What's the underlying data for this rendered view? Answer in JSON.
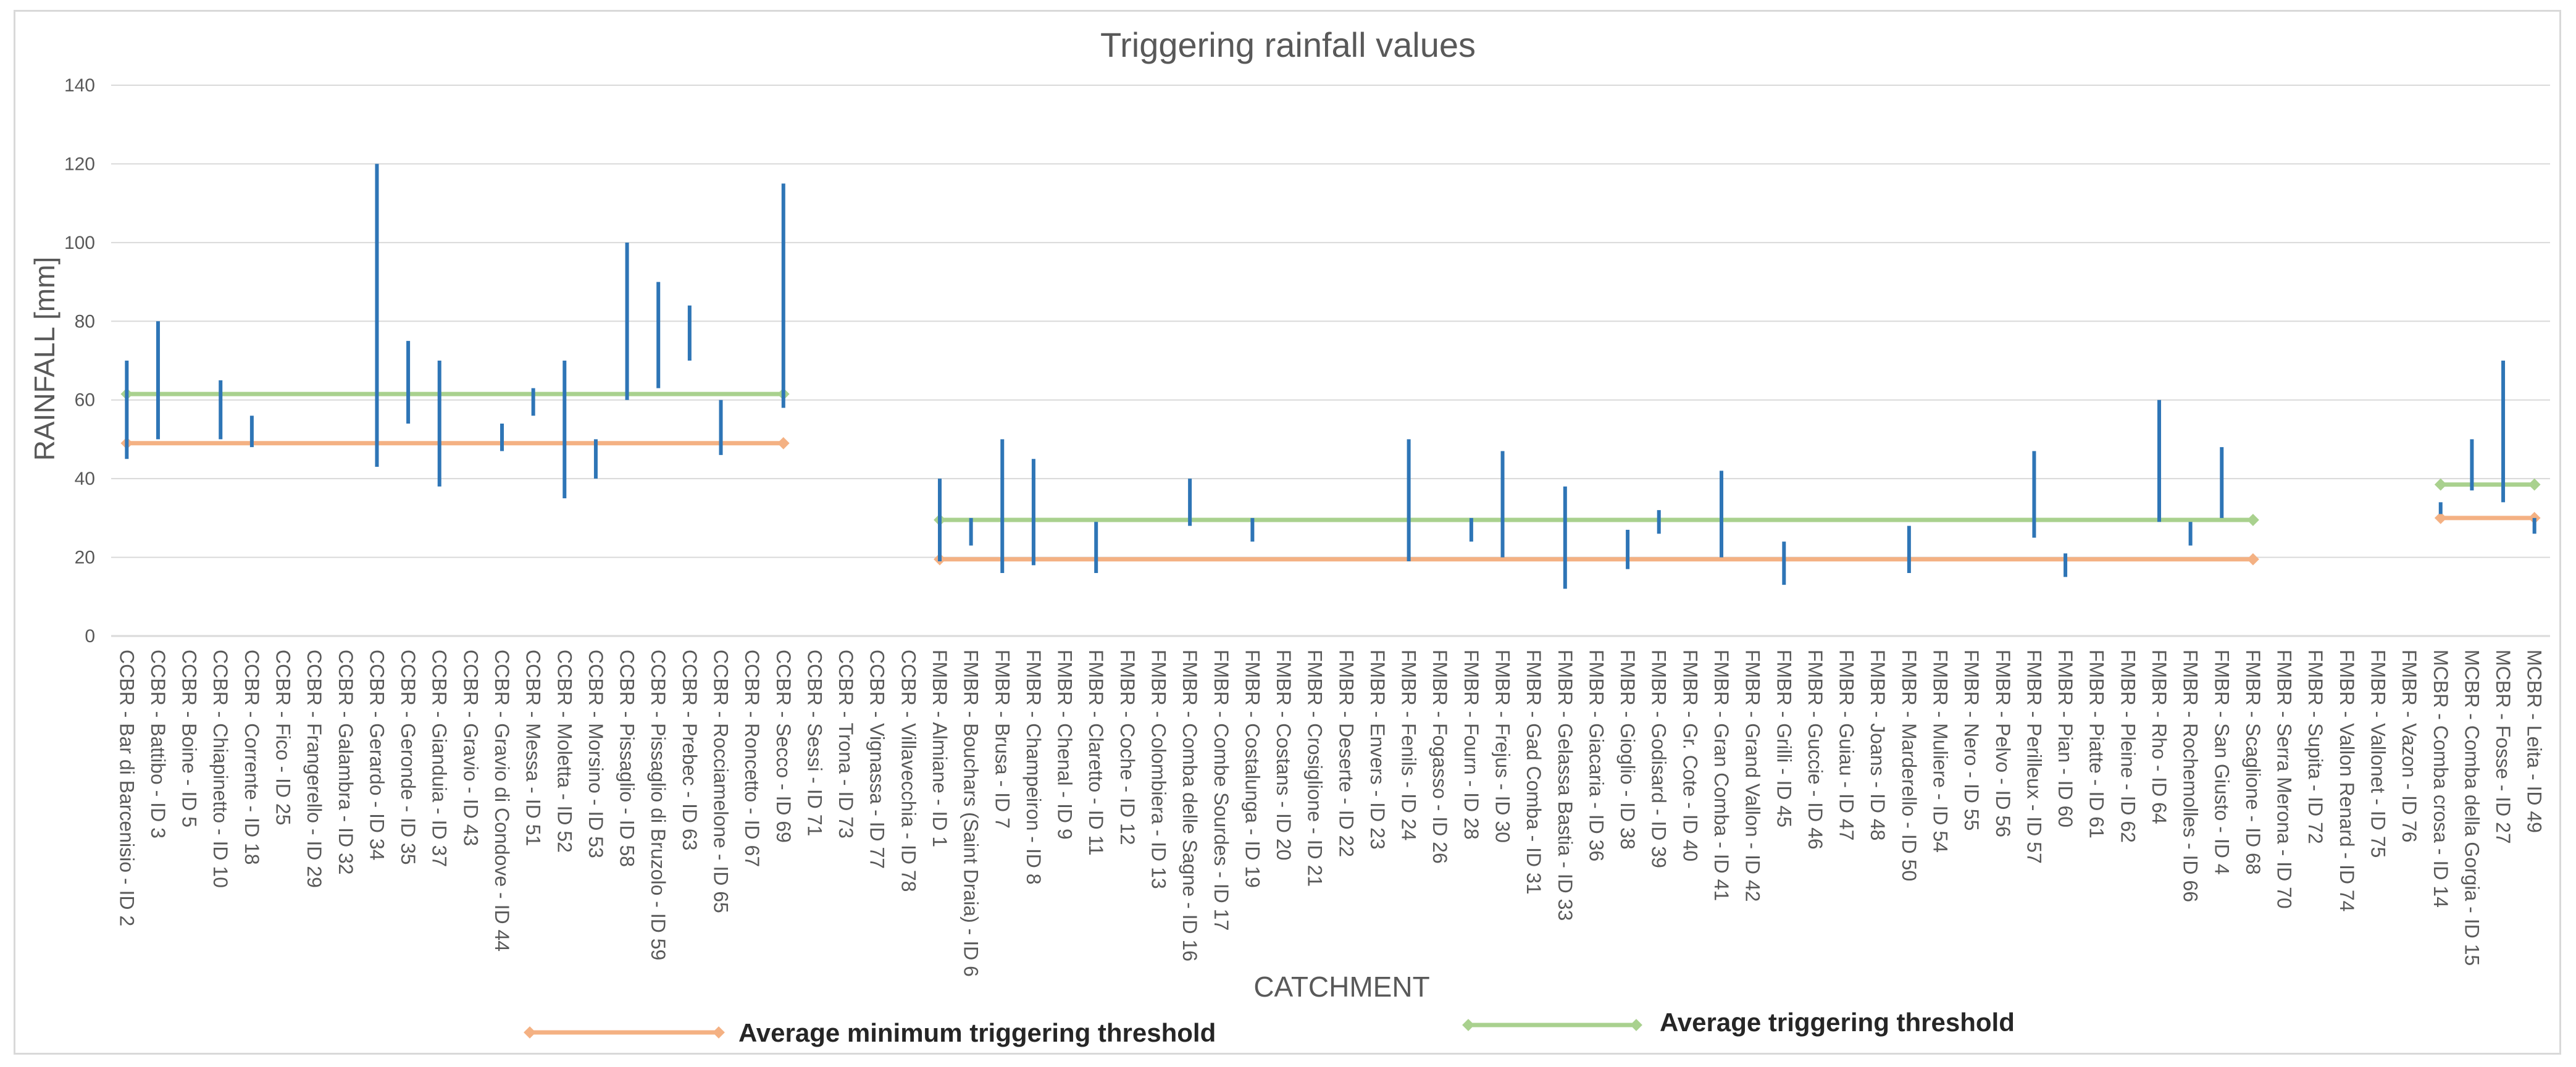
{
  "chart_data": {
    "type": "range-bar",
    "title": "Triggering rainfall values",
    "xlabel": "CATCHMENT",
    "ylabel": "RAINFALL [mm]",
    "ylim": [
      0,
      140
    ],
    "yticks": [
      0,
      20,
      40,
      60,
      80,
      100,
      120,
      140
    ],
    "grid": true,
    "colors": {
      "range": "#2e75b6",
      "min_threshold": "#f4b183",
      "avg_threshold": "#a9d18e",
      "grid": "#d9d9d9",
      "text": "#595959"
    },
    "categories": [
      "CCBR - Bar di Barcenisio - ID 2",
      "CCBR - Battibo - ID 3",
      "CCBR - Boine - ID 5",
      "CCBR - Chiapinetto - ID 10",
      "CCBR - Corrente - ID 18",
      "CCBR - Fico - ID 25",
      "CCBR - Frangerello - ID 29",
      "CCBR - Galambra - ID 32",
      "CCBR - Gerardo - ID 34",
      "CCBR - Geronde - ID 35",
      "CCBR - Gianduia - ID 37",
      "CCBR - Gravio - ID 43",
      "CCBR - Gravio di Condove - ID 44",
      "CCBR - Messa - ID 51",
      "CCBR - Moletta - ID 52",
      "CCBR - Morsino - ID 53",
      "CCBR - Pissaglio - ID 58",
      "CCBR - Pissaglio di Bruzolo - ID 59",
      "CCBR - Prebec - ID 63",
      "CCBR - Rocciamelone - ID 65",
      "CCBR - Roncetto - ID 67",
      "CCBR - Secco - ID 69",
      "CCBR - Sessi - ID 71",
      "CCBR - Trona - ID 73",
      "CCBR - Vignassa - ID 77",
      "CCBR - Villavecchia - ID 78",
      "FMBR - Almiane - ID 1",
      "FMBR - Bouchars (Saint Draia) - ID 6",
      "FMBR - Brusa - ID 7",
      "FMBR - Champeiron - ID 8",
      "FMBR - Chenal - ID 9",
      "FMBR - Claretto - ID 11",
      "FMBR - Coche - ID 12",
      "FMBR - Colombiera - ID 13",
      "FMBR - Comba delle Sagne - ID 16",
      "FMBR - Combe Sourdes - ID 17",
      "FMBR - Costalunga - ID 19",
      "FMBR - Costans - ID 20",
      "FMBR - Crosiglione - ID 21",
      "FMBR - Deserte - ID 22",
      "FMBR - Envers - ID 23",
      "FMBR - Fenils - ID 24",
      "FMBR - Fogasso - ID 26",
      "FMBR - Fourn - ID 28",
      "FMBR - Frejus - ID 30",
      "FMBR - Gad Comba - ID 31",
      "FMBR - Gelassa Bastia - ID 33",
      "FMBR - Giacaria - ID 36",
      "FMBR - Gioglio - ID 38",
      "FMBR - Godisard - ID 39",
      "FMBR - Gr. Cote - ID 40",
      "FMBR - Gran Comba - ID 41",
      "FMBR - Grand Vallon - ID 42",
      "FMBR - Grilli - ID 45",
      "FMBR - Guccie - ID 46",
      "FMBR - Guiau - ID 47",
      "FMBR - Joans - ID 48",
      "FMBR - Marderello - ID 50",
      "FMBR - Muliere - ID 54",
      "FMBR - Nero - ID 55",
      "FMBR - Pelvo - ID 56",
      "FMBR - Perilleux - ID 57",
      "FMBR - Pian - ID 60",
      "FMBR - Piatte - ID 61",
      "FMBR - Pleine - ID 62",
      "FMBR - Rho - ID 64",
      "FMBR - Rochemolles - ID 66",
      "FMBR - San Giusto - ID 4",
      "FMBR - Scaglione - ID 68",
      "FMBR - Serra Merona - ID 70",
      "FMBR - Supita - ID 72",
      "FMBR - Vallon Renard - ID 74",
      "FMBR - Vallonet - ID 75",
      "FMBR - Vazon - ID 76",
      "MCBR - Comba crosa - ID 14",
      "MCBR - Comba della Gorgia - ID 15",
      "MCBR - Fosse - ID 27",
      "MCBR - Leita - ID 49"
    ],
    "ranges": [
      {
        "category": "CCBR - Bar di Barcenisio - ID 2",
        "low": 45,
        "high": 70
      },
      {
        "category": "CCBR - Battibo - ID 3",
        "low": 50,
        "high": 80
      },
      {
        "category": "CCBR - Chiapinetto - ID 10",
        "low": 50,
        "high": 65
      },
      {
        "category": "CCBR - Corrente - ID 18",
        "low": 48,
        "high": 56
      },
      {
        "category": "CCBR - Gerardo - ID 34",
        "low": 43,
        "high": 120
      },
      {
        "category": "CCBR - Geronde - ID 35",
        "low": 54,
        "high": 75
      },
      {
        "category": "CCBR - Gianduia - ID 37",
        "low": 38,
        "high": 70
      },
      {
        "category": "CCBR - Gravio di Condove - ID 44",
        "low": 47,
        "high": 54
      },
      {
        "category": "CCBR - Messa - ID 51",
        "low": 56,
        "high": 63
      },
      {
        "category": "CCBR - Moletta - ID 52",
        "low": 35,
        "high": 70
      },
      {
        "category": "CCBR - Morsino - ID 53",
        "low": 40,
        "high": 50
      },
      {
        "category": "CCBR - Pissaglio - ID 58",
        "low": 60,
        "high": 100
      },
      {
        "category": "CCBR - Pissaglio di Bruzolo - ID 59",
        "low": 63,
        "high": 90
      },
      {
        "category": "CCBR - Prebec - ID 63",
        "low": 70,
        "high": 84
      },
      {
        "category": "CCBR - Rocciamelone - ID 65",
        "low": 46,
        "high": 60
      },
      {
        "category": "CCBR - Secco - ID 69",
        "low": 58,
        "high": 115
      },
      {
        "category": "FMBR - Almiane - ID 1",
        "low": 19,
        "high": 40
      },
      {
        "category": "FMBR - Bouchars (Saint Draia) - ID 6",
        "low": 23,
        "high": 30
      },
      {
        "category": "FMBR - Brusa - ID 7",
        "low": 16,
        "high": 50
      },
      {
        "category": "FMBR - Champeiron - ID 8",
        "low": 18,
        "high": 45
      },
      {
        "category": "FMBR - Claretto - ID 11",
        "low": 16,
        "high": 29
      },
      {
        "category": "FMBR - Comba delle Sagne - ID 16",
        "low": 28,
        "high": 40
      },
      {
        "category": "FMBR - Costalunga - ID 19",
        "low": 24,
        "high": 30
      },
      {
        "category": "FMBR - Fenils - ID 24",
        "low": 19,
        "high": 50
      },
      {
        "category": "FMBR - Fourn - ID 28",
        "low": 24,
        "high": 30
      },
      {
        "category": "FMBR - Frejus - ID 30",
        "low": 20,
        "high": 47
      },
      {
        "category": "FMBR - Gelassa Bastia - ID 33",
        "low": 12,
        "high": 38
      },
      {
        "category": "FMBR - Gioglio - ID 38",
        "low": 17,
        "high": 27
      },
      {
        "category": "FMBR - Godisard - ID 39",
        "low": 26,
        "high": 32
      },
      {
        "category": "FMBR - Gran Comba - ID 41",
        "low": 20,
        "high": 42
      },
      {
        "category": "FMBR - Grilli - ID 45",
        "low": 13,
        "high": 24
      },
      {
        "category": "FMBR - Marderello - ID 50",
        "low": 16,
        "high": 28
      },
      {
        "category": "FMBR - Perilleux - ID 57",
        "low": 25,
        "high": 47
      },
      {
        "category": "FMBR - Pian - ID 60",
        "low": 15,
        "high": 21
      },
      {
        "category": "FMBR - Rho - ID 64",
        "low": 29,
        "high": 60
      },
      {
        "category": "FMBR - Rochemolles - ID 66",
        "low": 23,
        "high": 29
      },
      {
        "category": "FMBR - San Giusto - ID 4",
        "low": 30,
        "high": 48
      },
      {
        "category": "MCBR - Comba crosa - ID 14",
        "low": 31,
        "high": 34
      },
      {
        "category": "MCBR - Comba della Gorgia - ID 15",
        "low": 37,
        "high": 50
      },
      {
        "category": "MCBR - Fosse - ID 27",
        "low": 34,
        "high": 70
      },
      {
        "category": "MCBR - Leita - ID 49",
        "low": 26,
        "high": 30
      }
    ],
    "threshold_series": [
      {
        "name": "Average minimum triggering threshold",
        "color": "#f4b183",
        "segments": [
          {
            "from": "CCBR - Bar di Barcenisio - ID 2",
            "to": "CCBR - Secco - ID 69",
            "value": 49
          },
          {
            "from": "FMBR - Almiane - ID 1",
            "to": "FMBR - Scaglione - ID 68",
            "value": 19.5
          },
          {
            "from": "MCBR - Comba crosa - ID 14",
            "to": "MCBR - Leita - ID 49",
            "value": 30
          }
        ]
      },
      {
        "name": "Average triggering threshold",
        "color": "#a9d18e",
        "segments": [
          {
            "from": "CCBR - Bar di Barcenisio - ID 2",
            "to": "CCBR - Secco - ID 69",
            "value": 61.5
          },
          {
            "from": "FMBR - Almiane - ID 1",
            "to": "FMBR - Scaglione - ID 68",
            "value": 29.5
          },
          {
            "from": "MCBR - Comba crosa - ID 14",
            "to": "MCBR - Leita - ID 49",
            "value": 38.5
          }
        ]
      }
    ],
    "legend": [
      {
        "label": "Average minimum triggering threshold",
        "color": "#f4b183"
      },
      {
        "label": "Average triggering threshold",
        "color": "#a9d18e"
      }
    ]
  }
}
